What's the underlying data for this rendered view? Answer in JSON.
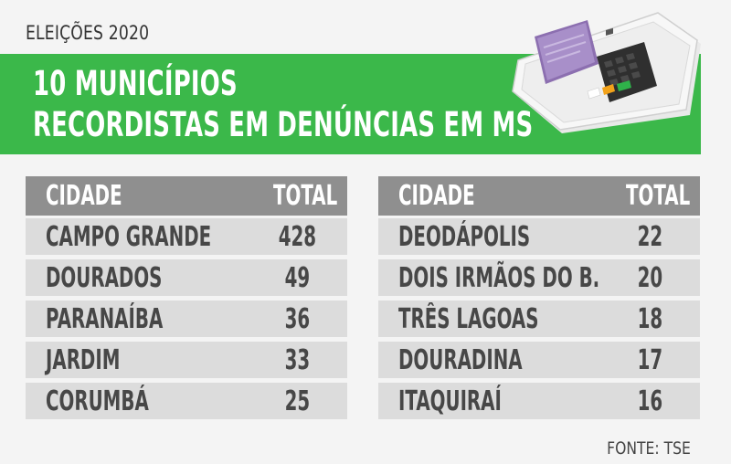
{
  "eyebrow": "ELEIÇÕES 2020",
  "title": {
    "line1": "10 MUNICÍPIOS",
    "line2": "RECORDISTAS EM DENÚNCIAS EM MS"
  },
  "colors": {
    "banner": "#3bb84a",
    "header_row": "#8f8f8f",
    "body_row": "#dcdcdc",
    "text": "#474747"
  },
  "icons": [
    "voting-machine-icon"
  ],
  "tables": [
    {
      "header": {
        "city": "CIDADE",
        "total": "TOTAL"
      },
      "rows": [
        {
          "city": "CAMPO GRANDE",
          "total": "428"
        },
        {
          "city": "DOURADOS",
          "total": "49"
        },
        {
          "city": "PARANAÍBA",
          "total": "36"
        },
        {
          "city": "JARDIM",
          "total": "33"
        },
        {
          "city": "CORUMBÁ",
          "total": "25"
        }
      ]
    },
    {
      "header": {
        "city": "CIDADE",
        "total": "TOTAL"
      },
      "rows": [
        {
          "city": "DEODÁPOLIS",
          "total": "22"
        },
        {
          "city": "DOIS IRMÃOS DO B.",
          "total": "20"
        },
        {
          "city": "TRÊS LAGOAS",
          "total": "18"
        },
        {
          "city": "DOURADINA",
          "total": "17"
        },
        {
          "city": "ITAQUIRAÍ",
          "total": "16"
        }
      ]
    }
  ],
  "source": "FONTE: TSE"
}
